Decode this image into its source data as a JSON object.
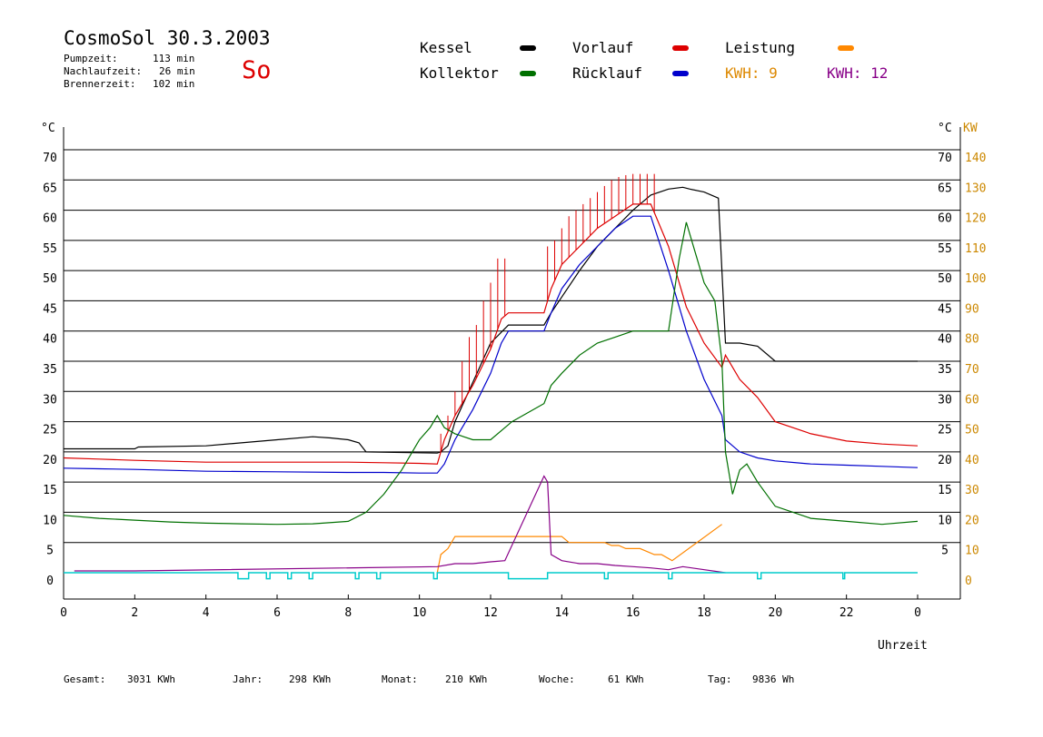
{
  "header": {
    "title": "CosmoSol 30.3.2003",
    "pumpzeit_label": "Pumpzeit:",
    "pumpzeit_value": "113 min",
    "nachlaufzeit_label": "Nachlaufzeit:",
    "nachlaufzeit_value": "26 min",
    "brennerzeit_label": "Brennerzeit:",
    "brennerzeit_value": "102 min",
    "day": "So"
  },
  "legend": {
    "kessel": "Kessel",
    "kollektor": "Kollektor",
    "vorlauf": "Vorlauf",
    "ruecklauf": "Rücklauf",
    "leistung": "Leistung",
    "kwh1": "KWH: 9",
    "kwh2": "KWH: 12"
  },
  "colors": {
    "kessel": "#000000",
    "kollektor": "#007000",
    "vorlauf": "#dd0000",
    "ruecklauf": "#0000cc",
    "leistung": "#ff8800",
    "leistung2": "#880088",
    "pumpe": "#00cccc",
    "right_axis": "#cc8800"
  },
  "footer": {
    "gesamt_label": "Gesamt:",
    "gesamt_value": "3031 KWh",
    "jahr_label": "Jahr:",
    "jahr_value": "298 KWh",
    "monat_label": "Monat:",
    "monat_value": "210 KWh",
    "woche_label": "Woche:",
    "woche_value": "61 KWh",
    "tag_label": "Tag:",
    "tag_value": "9836 Wh"
  },
  "chart_data": {
    "type": "line",
    "xlabel": "Uhrzeit",
    "ylabel_left": "°C",
    "ylabel_right_1": "°C",
    "ylabel_right_2": "KW",
    "xlim": [
      0,
      24
    ],
    "ylim": [
      0,
      70
    ],
    "y2lim": [
      0,
      140
    ],
    "x_ticks": [
      "0",
      "2",
      "4",
      "6",
      "8",
      "10",
      "12",
      "14",
      "16",
      "18",
      "20",
      "22",
      "0"
    ],
    "y_ticks": [
      "0",
      "5",
      "10",
      "15",
      "20",
      "25",
      "30",
      "35",
      "40",
      "45",
      "50",
      "55",
      "60",
      "65",
      "70"
    ],
    "y_ticks_right": [
      "",
      "5",
      "10",
      "15",
      "20",
      "25",
      "30",
      "35",
      "40",
      "45",
      "50",
      "55",
      "60",
      "65",
      "70"
    ],
    "y2_ticks": [
      "0",
      "10",
      "20",
      "30",
      "40",
      "50",
      "60",
      "70",
      "80",
      "90",
      "100",
      "110",
      "120",
      "130",
      "140"
    ],
    "grid": "horizontal",
    "series": [
      {
        "name": "Kessel",
        "x": [
          0,
          0.5,
          2,
          2.1,
          4,
          6,
          7,
          7.5,
          8,
          8.3,
          8.5,
          10.5,
          10.6,
          10.8,
          11,
          12,
          12.5,
          13.5,
          13.7,
          14.5,
          15,
          15.5,
          16,
          16.5,
          17,
          17.4,
          17.6,
          18,
          18.4,
          18.6,
          18.8,
          19,
          19.5,
          20,
          22,
          24
        ],
        "y": [
          20.5,
          20.5,
          20.5,
          20.8,
          21,
          22,
          22.5,
          22.3,
          22,
          21.5,
          20,
          19.8,
          20,
          21,
          25,
          38,
          41,
          41,
          43,
          50,
          54,
          57,
          60,
          62.5,
          63.5,
          63.8,
          63.5,
          63,
          62,
          38,
          38,
          38,
          37.5,
          35,
          35,
          35
        ]
      },
      {
        "name": "Vorlauf",
        "x": [
          0,
          1,
          2,
          4,
          6,
          8,
          9,
          10,
          10.5,
          10.7,
          11,
          11.5,
          12,
          12.3,
          12.5,
          13.5,
          13.7,
          14,
          14.5,
          15,
          15.5,
          16,
          16.5,
          17,
          17.5,
          18,
          18.5,
          18.6,
          19,
          19.5,
          20,
          21,
          22,
          23,
          24
        ],
        "y": [
          19,
          18.8,
          18.6,
          18.3,
          18.3,
          18.3,
          18.2,
          18.1,
          18,
          22,
          26,
          31,
          37,
          42,
          43,
          43,
          47,
          51,
          54,
          57,
          59,
          61,
          61,
          54,
          44,
          38,
          34,
          36,
          32,
          29,
          25,
          23,
          21.8,
          21.3,
          21
        ],
        "spikes": {
          "x": [
            10.6,
            10.8,
            11,
            11.2,
            11.4,
            11.6,
            11.8,
            12,
            12.2,
            12.4,
            13.6,
            13.8,
            14,
            14.2,
            14.4,
            14.6,
            14.8,
            15,
            15.2,
            15.4,
            15.6,
            15.8,
            16,
            16.2,
            16.4,
            16.6
          ],
          "peak": [
            23,
            26,
            30,
            35,
            39,
            41,
            45,
            48,
            52,
            52,
            54,
            55,
            57,
            59,
            60,
            61,
            62,
            63,
            64,
            65,
            65.5,
            65.8,
            66,
            66,
            66,
            66
          ]
        }
      },
      {
        "name": "Rücklauf",
        "x": [
          0,
          1,
          2,
          4,
          6,
          8,
          9,
          10,
          10.5,
          10.7,
          11,
          11.5,
          12,
          12.3,
          12.5,
          13.5,
          13.7,
          14,
          14.5,
          15,
          15.5,
          16,
          16.5,
          17,
          17.5,
          18,
          18.5,
          18.6,
          19,
          19.5,
          20,
          21,
          22,
          23,
          24
        ],
        "y": [
          17.3,
          17.2,
          17.1,
          16.8,
          16.7,
          16.6,
          16.6,
          16.5,
          16.5,
          18,
          22,
          27,
          33,
          38,
          40,
          40,
          43,
          47,
          51,
          54,
          57,
          59,
          59,
          50,
          40,
          32,
          26,
          22,
          20,
          19,
          18.5,
          18,
          17.8,
          17.6,
          17.4
        ]
      },
      {
        "name": "Kollektor",
        "x": [
          0,
          1,
          2,
          3,
          4,
          5,
          6,
          7,
          8,
          8.5,
          9,
          9.5,
          10,
          10.3,
          10.5,
          10.7,
          11,
          11.5,
          12,
          12.4,
          12.6,
          13.5,
          13.7,
          14,
          14.5,
          15,
          15.5,
          16,
          16.5,
          17,
          17.3,
          17.5,
          17.8,
          18,
          18.3,
          18.5,
          18.6,
          18.8,
          19,
          19.2,
          19.5,
          20,
          20.5,
          21,
          22,
          23,
          24
        ],
        "y": [
          9.5,
          9,
          8.7,
          8.4,
          8.2,
          8.1,
          8,
          8.1,
          8.5,
          10,
          13,
          17,
          22,
          24,
          26,
          24,
          23,
          22,
          22,
          24,
          25,
          28,
          31,
          33,
          36,
          38,
          39,
          40,
          40,
          40,
          52,
          58,
          52,
          48,
          45,
          35,
          20,
          13,
          17,
          18,
          15,
          11,
          10,
          9,
          8.5,
          8,
          8.5
        ]
      },
      {
        "name": "Leistung",
        "x": [
          10.5,
          10.6,
          10.8,
          11,
          11.2,
          11.4,
          11.6,
          11.8,
          12,
          12.2,
          12.4,
          13.6,
          13.8,
          14,
          14.2,
          14.4,
          14.6,
          14.8,
          15,
          15.2,
          15.4,
          15.6,
          15.8,
          16,
          16.2,
          16.4,
          16.6,
          16.8,
          17.1,
          18.5
        ],
        "y": [
          0,
          3,
          4,
          6,
          6,
          6,
          6,
          6,
          6,
          6,
          6,
          6,
          6,
          6,
          5,
          5,
          5,
          5,
          5,
          5,
          4.5,
          4.5,
          4,
          4,
          4,
          3.5,
          3,
          3,
          2,
          8
        ]
      },
      {
        "name": "Leistung 2",
        "x": [
          0.3,
          2,
          10.5,
          11,
          11.5,
          12,
          12.4,
          13.5,
          13.6,
          13.7,
          14,
          14.5,
          15,
          15.5,
          16,
          16.5,
          17,
          17.4,
          18.6
        ],
        "y": [
          0.3,
          0.3,
          1,
          1.5,
          1.5,
          1.8,
          2,
          16,
          15,
          3,
          2,
          1.5,
          1.5,
          1.2,
          1,
          0.8,
          0.5,
          1,
          0
        ]
      }
    ],
    "pump_pulses": [
      [
        4.9,
        5.2
      ],
      [
        5.7,
        5.8
      ],
      [
        6.3,
        6.4
      ],
      [
        6.9,
        7.0
      ],
      [
        8.2,
        8.3
      ],
      [
        8.8,
        8.9
      ],
      [
        10.4,
        10.5
      ],
      [
        12.5,
        13.6
      ],
      [
        15.2,
        15.3
      ],
      [
        17.0,
        17.1
      ],
      [
        19.5,
        19.6
      ],
      [
        21.9,
        21.95
      ]
    ]
  }
}
